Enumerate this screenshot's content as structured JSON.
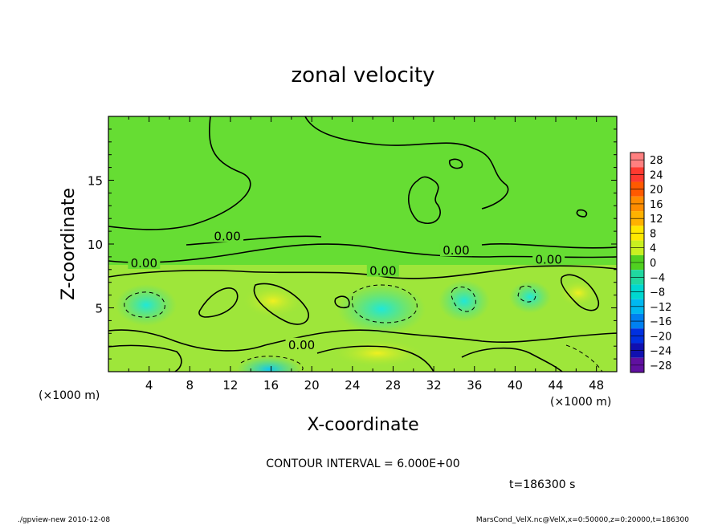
{
  "chart_data": {
    "type": "heatmap",
    "title": "zonal velocity",
    "xlabel": "X-coordinate",
    "ylabel": "Z-coordinate",
    "x_unit": "(×1000 m)",
    "y_unit": "(×1000 m)",
    "xlim": [
      0,
      50
    ],
    "ylim": [
      0,
      20
    ],
    "x_ticks": [
      "4",
      "8",
      "12",
      "16",
      "20",
      "24",
      "28",
      "32",
      "36",
      "40",
      "44",
      "48"
    ],
    "y_ticks": [
      "5",
      "10",
      "15"
    ],
    "contour_interval_text": "CONTOUR INTERVAL = 6.000E+00",
    "contour_labels": [
      "0.00",
      "0.00",
      "0.00",
      "0.00",
      "0.00",
      "0.00"
    ],
    "colorbar": {
      "levels": [
        "28",
        "24",
        "20",
        "16",
        "12",
        "8",
        "4",
        "0",
        "−4",
        "−8",
        "−12",
        "−16",
        "−20",
        "−24",
        "−28"
      ],
      "colors": [
        "#ff8080",
        "#ff3a30",
        "#ff5a00",
        "#ff8c00",
        "#ffb200",
        "#ffe800",
        "#c8f020",
        "#50d020",
        "#20d8a0",
        "#00d8d0",
        "#00b8f0",
        "#0080f0",
        "#0030e0",
        "#1010b0",
        "#6010a0"
      ]
    },
    "time_text": "t=186300 s",
    "footer_left": "./gpview-new   2010-12-08",
    "footer_right": "MarsCond_VelX.nc@VelX,x=0:50000,z=0:20000,t=186300"
  }
}
